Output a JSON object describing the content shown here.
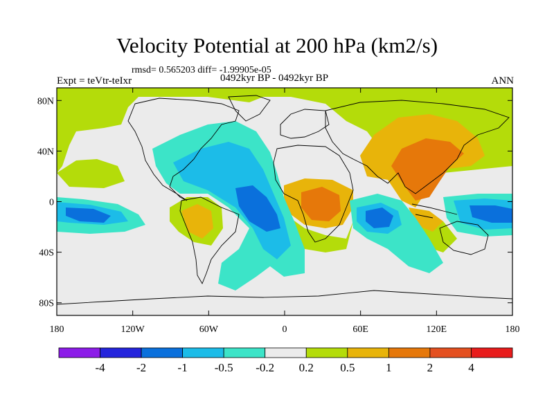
{
  "title": "Velocity Potential at 200 hPa (km2/s)",
  "stats": "rmsd= 0.565203 diff= -1.99905e-05",
  "expt": "Expt = teVtr-teIxr",
  "period": "0492kyr BP - 0492kyr BP",
  "season": "ANN",
  "map": {
    "projection": "cylindrical-equidistant",
    "lon_range": [
      -180,
      180
    ],
    "lat_range": [
      -90,
      90
    ],
    "background_color": "#ebebeb",
    "lat_ticks": [
      {
        "value": 80,
        "label": "80N"
      },
      {
        "value": 40,
        "label": "40N"
      },
      {
        "value": 0,
        "label": "0"
      },
      {
        "value": -40,
        "label": "40S"
      },
      {
        "value": -80,
        "label": "80S"
      }
    ],
    "lon_ticks": [
      {
        "value": -180,
        "label": "180"
      },
      {
        "value": -120,
        "label": "120W"
      },
      {
        "value": -60,
        "label": "60W"
      },
      {
        "value": 0,
        "label": "0"
      },
      {
        "value": 60,
        "label": "60E"
      },
      {
        "value": 120,
        "label": "120E"
      },
      {
        "value": 180,
        "label": "180"
      }
    ]
  },
  "colorbar": {
    "colors": [
      "#8c1ce8",
      "#2424dc",
      "#0a70dc",
      "#1cbce8",
      "#3ce4c8",
      "#ebebeb",
      "#b4dc0a",
      "#e8b40a",
      "#e6780a",
      "#e45020",
      "#e81c1c"
    ],
    "labels": [
      "-4",
      "-2",
      "-1",
      "-0.5",
      "-0.2",
      "0.2",
      "0.5",
      "1",
      "2",
      "4"
    ]
  }
}
